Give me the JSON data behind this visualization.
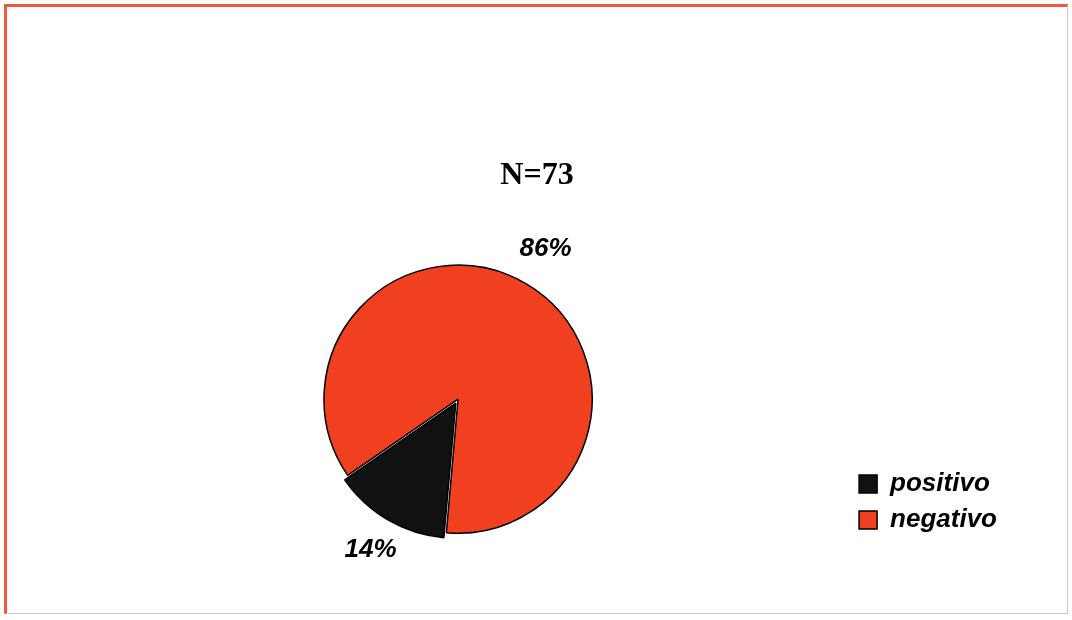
{
  "chart_data": {
    "type": "pie",
    "title": "N=73",
    "categories": [
      "positivo",
      "negativo"
    ],
    "values": [
      14,
      86
    ],
    "colors": [
      "#111111",
      "#f0401f"
    ],
    "value_labels": [
      "14%",
      "86%"
    ],
    "legend": "bottom right"
  }
}
